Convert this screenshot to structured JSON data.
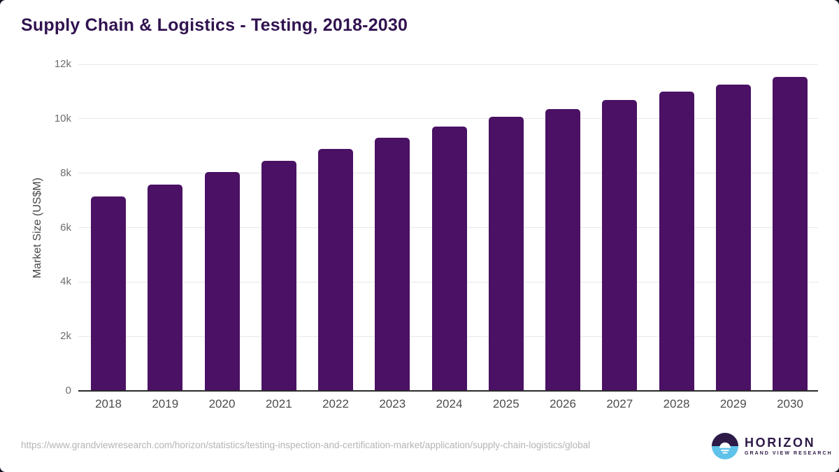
{
  "page": {
    "title": "Supply Chain & Logistics - Testing, 2018-2030",
    "source_url": "https://www.grandviewresearch.com/horizon/statistics/testing-inspection-and-certification-market/application/supply-chain-logistics/global",
    "brand": {
      "name": "HORIZON",
      "subtitle": "GRAND VIEW RESEARCH"
    }
  },
  "colors": {
    "bar": "#4a1164",
    "title": "#311350",
    "gridline": "#e8e8e8",
    "axis_line": "#2b2b2b",
    "ytick_text": "#6e6e6e",
    "xtick_text": "#4d4d4d",
    "url_text": "#b4b4b4",
    "brand_purple": "#2e1a47",
    "brand_blue": "#5ec2e9"
  },
  "chart_data": {
    "type": "bar",
    "title": "Supply Chain & Logistics - Testing, 2018-2030",
    "xlabel": "",
    "ylabel": "Market Size (US$M)",
    "categories": [
      "2018",
      "2019",
      "2020",
      "2021",
      "2022",
      "2023",
      "2024",
      "2025",
      "2026",
      "2027",
      "2028",
      "2029",
      "2030"
    ],
    "values": [
      7150,
      7570,
      8030,
      8450,
      8900,
      9310,
      9720,
      10060,
      10360,
      10700,
      10990,
      11260,
      11550
    ],
    "ylim": [
      0,
      12000
    ],
    "ytick_labels": [
      "0",
      "2k",
      "4k",
      "6k",
      "8k",
      "10k",
      "12k"
    ],
    "grid": "horizontal",
    "legend": false,
    "bar_color": "#4a1164"
  }
}
